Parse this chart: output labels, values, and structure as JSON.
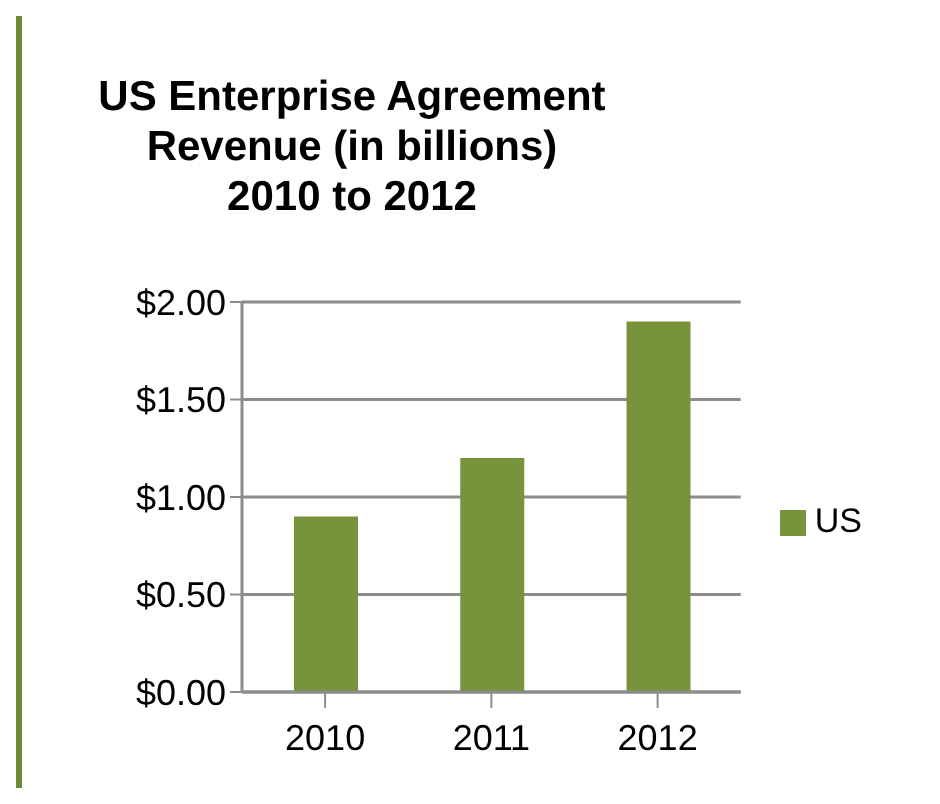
{
  "chart_data": {
    "type": "bar",
    "title": "US Enterprise Agreement\nRevenue (in billions)\n2010 to 2012",
    "categories": [
      "2010",
      "2011",
      "2012"
    ],
    "series": [
      {
        "name": "US",
        "color": "#77933c",
        "values": [
          0.9,
          1.2,
          1.9
        ]
      }
    ],
    "ylim": [
      0,
      2
    ],
    "yticks": [
      {
        "value": 0,
        "label": "$0.00"
      },
      {
        "value": 0.5,
        "label": "$0.50"
      },
      {
        "value": 1,
        "label": "$1.00"
      },
      {
        "value": 1.5,
        "label": "$1.50"
      },
      {
        "value": 2,
        "label": "$2.00"
      }
    ],
    "grid": "y",
    "legend": "right"
  }
}
